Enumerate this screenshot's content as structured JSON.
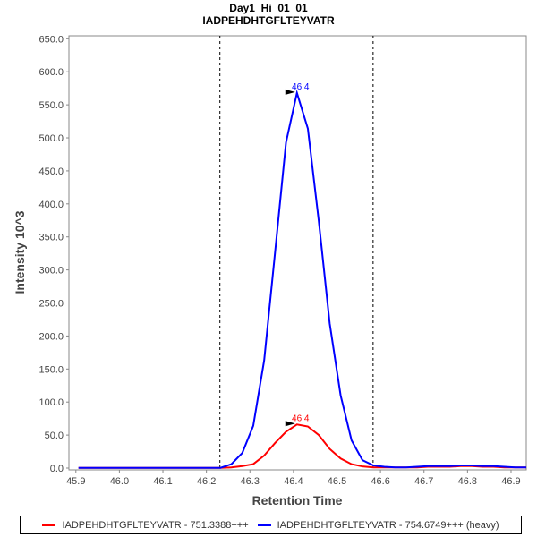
{
  "chart_data": {
    "type": "line",
    "title": "Day1_Hi_01_01",
    "subtitle": "IADPEHDHTGFLTEYVATR",
    "xlabel": "Retention Time",
    "ylabel": "Intensity 10^3",
    "xlim": [
      45.884,
      46.935
    ],
    "ylim": [
      -2.7,
      654.5
    ],
    "xticks": [
      "45.9",
      "46.0",
      "46.1",
      "46.2",
      "46.3",
      "46.4",
      "46.5",
      "46.6",
      "46.7",
      "46.8",
      "46.9"
    ],
    "yticks": [
      "0.0",
      "50.0",
      "100.0",
      "150.0",
      "200.0",
      "250.0",
      "300.0",
      "350.0",
      "400.0",
      "450.0",
      "500.0",
      "550.0",
      "600.0",
      "650.0"
    ],
    "grid": false,
    "legend_placement": "bottom",
    "x_start": 45.906,
    "x_step": 0.0251,
    "boundaries": [
      46.231,
      46.583
    ],
    "series": [
      {
        "name": "IADPEHDHTGFLTEYVATR - 751.3388+++",
        "color": "#ff0000",
        "peak_label": "46.4",
        "values": [
          0.3,
          0.3,
          0.3,
          0.3,
          0.3,
          0.3,
          0.3,
          0.3,
          0.3,
          0.3,
          0.3,
          0.3,
          0.3,
          0.3,
          1,
          3,
          6,
          19,
          38,
          55,
          66,
          63,
          50,
          29,
          14.5,
          6,
          2.5,
          1,
          1,
          1,
          1,
          1,
          2,
          2,
          2,
          3,
          3,
          2,
          2,
          1,
          1,
          1
        ]
      },
      {
        "name": "IADPEHDHTGFLTEYVATR - 754.6749+++ (heavy)",
        "color": "#0000ff",
        "peak_label": "46.4",
        "values": [
          0.3,
          0.3,
          0.3,
          0.3,
          0.3,
          0.3,
          0.3,
          0.3,
          0.3,
          0.3,
          0.3,
          0.3,
          0.3,
          0.4,
          6,
          23,
          64,
          163,
          327,
          493,
          568,
          514,
          374,
          219,
          110,
          42,
          12,
          4,
          2,
          1,
          1,
          2,
          3,
          3,
          3,
          4,
          4,
          3,
          3,
          2,
          1,
          1
        ]
      }
    ]
  }
}
